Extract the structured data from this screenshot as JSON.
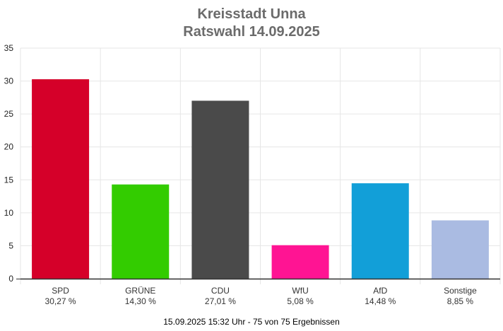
{
  "chart_data": {
    "type": "bar",
    "title": "Kreisstadt Unna",
    "subtitle": "Ratswahl 14.09.2025",
    "categories": [
      "SPD",
      "GRÜNE",
      "CDU",
      "WfU",
      "AfD",
      "Sonstige"
    ],
    "values": [
      30.27,
      14.3,
      27.01,
      5.08,
      14.48,
      8.85
    ],
    "value_labels": [
      "30,27 %",
      "14,30 %",
      "27,01 %",
      "5,08 %",
      "14,48 %",
      "8,85 %"
    ],
    "colors": [
      "#d50029",
      "#33cc00",
      "#4a4a4a",
      "#ff1493",
      "#129fd8",
      "#aabbe2"
    ],
    "ylim": [
      0,
      35
    ],
    "yticks": [
      0,
      5,
      10,
      15,
      20,
      25,
      30,
      35
    ],
    "grid": true,
    "xlabel": "",
    "ylabel": ""
  },
  "footer": "15.09.2025 15:32 Uhr - 75 von 75 Ergebnissen"
}
